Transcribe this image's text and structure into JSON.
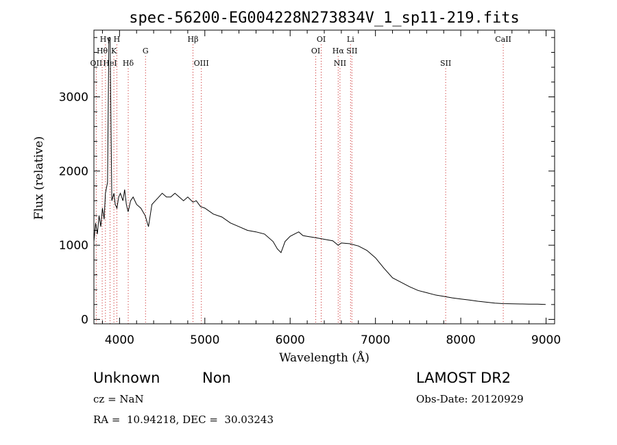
{
  "chart_data": {
    "type": "line",
    "title": "spec-56200-EG004228N273834V_1_sp11-219.fits",
    "xlabel": "Wavelength (Å)",
    "ylabel": "Flux (relative)",
    "xlim": [
      3700,
      9100
    ],
    "ylim": [
      -60,
      3900
    ],
    "x_ticks": [
      4000,
      5000,
      6000,
      7000,
      8000,
      9000
    ],
    "y_ticks": [
      0,
      1000,
      2000,
      3000
    ],
    "grid": false,
    "series": [
      {
        "x": [
          3700,
          3720,
          3740,
          3760,
          3780,
          3800,
          3820,
          3835,
          3860,
          3875,
          3890,
          3910,
          3935,
          3950,
          3970,
          3990,
          4010,
          4040,
          4060,
          4080,
          4101,
          4130,
          4160,
          4200,
          4250,
          4300,
          4340,
          4380,
          4420,
          4460,
          4500,
          4550,
          4600,
          4650,
          4700,
          4750,
          4800,
          4861,
          4900,
          4950,
          5000,
          5100,
          5200,
          5300,
          5400,
          5500,
          5600,
          5700,
          5800,
          5850,
          5893,
          5940,
          6000,
          6050,
          6100,
          6150,
          6200,
          6300,
          6400,
          6500,
          6563,
          6600,
          6700,
          6800,
          6900,
          7000,
          7100,
          7200,
          7300,
          7400,
          7500,
          7600,
          7700,
          7800,
          7900,
          8000,
          8100,
          8200,
          8300,
          8400,
          8500,
          8600,
          8700,
          8800,
          8900,
          8995
        ],
        "y": [
          1050,
          1300,
          1150,
          1400,
          1250,
          1500,
          1350,
          1700,
          1850,
          3800,
          3800,
          1600,
          1700,
          1550,
          1500,
          1650,
          1700,
          1600,
          1750,
          1550,
          1450,
          1600,
          1650,
          1550,
          1500,
          1400,
          1250,
          1550,
          1600,
          1650,
          1700,
          1650,
          1650,
          1700,
          1650,
          1600,
          1650,
          1580,
          1600,
          1520,
          1500,
          1420,
          1380,
          1300,
          1250,
          1200,
          1180,
          1150,
          1050,
          950,
          900,
          1050,
          1120,
          1150,
          1180,
          1130,
          1120,
          1100,
          1080,
          1060,
          1000,
          1030,
          1020,
          990,
          930,
          830,
          690,
          560,
          500,
          440,
          390,
          360,
          330,
          310,
          290,
          275,
          260,
          245,
          232,
          220,
          212,
          210,
          208,
          206,
          205,
          200
        ]
      }
    ],
    "lines": [
      {
        "label": "Hγ",
        "x": 3835,
        "row": 1
      },
      {
        "label": "Hθ",
        "x": 3797,
        "row": 2
      },
      {
        "label": "OII",
        "x": 3727,
        "row": 3
      },
      {
        "label": "HeI",
        "x": 3889,
        "row": 3
      },
      {
        "label": "H",
        "x": 3969,
        "row": 1
      },
      {
        "label": "K",
        "x": 3934,
        "row": 2
      },
      {
        "label": "Hδ",
        "x": 4102,
        "row": 3
      },
      {
        "label": "G",
        "x": 4305,
        "row": 2
      },
      {
        "label": "Hβ",
        "x": 4861,
        "row": 1
      },
      {
        "label": "OIII",
        "x": 4959,
        "row": 3
      },
      {
        "label": "OI",
        "x": 6364,
        "row": 1
      },
      {
        "label": "OI",
        "x": 6300,
        "row": 2
      },
      {
        "label": "Hα",
        "x": 6563,
        "row": 2
      },
      {
        "label": "NII",
        "x": 6584,
        "row": 3
      },
      {
        "label": "Li",
        "x": 6708,
        "row": 1
      },
      {
        "label": "SII",
        "x": 6724,
        "row": 2
      },
      {
        "label": "SII",
        "x": 7823,
        "row": 3
      },
      {
        "label": "CaII",
        "x": 8498,
        "row": 1
      }
    ]
  },
  "footer": {
    "class_text": "Unknown",
    "subclass_text": "Non",
    "survey_text": "LAMOST DR2",
    "cz_text": "cz = NaN",
    "obsdate_text": "Obs-Date: 20120929",
    "radec_text": "RA =  10.94218, DEC =  30.03243"
  },
  "colors": {
    "spectrum": "#000000",
    "line_markers": "#c81e1e"
  }
}
